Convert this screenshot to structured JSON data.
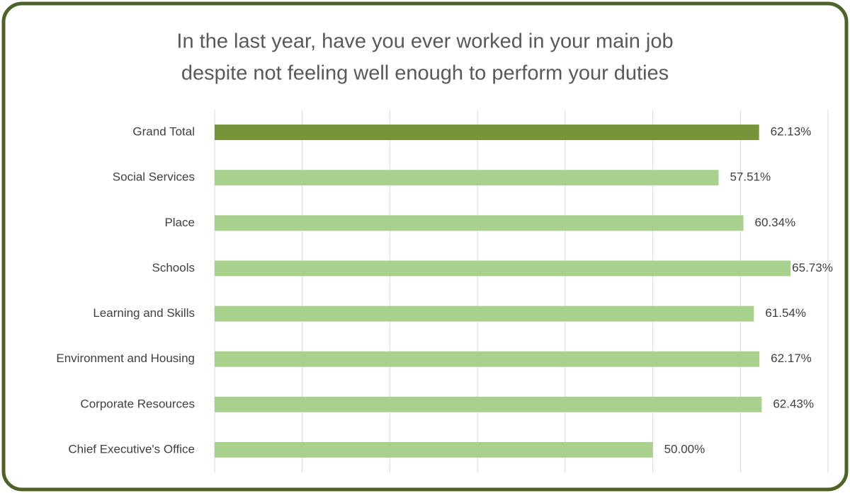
{
  "chart_data": {
    "type": "bar",
    "orientation": "horizontal",
    "title": [
      "In the last year, have you ever worked in your main job",
      "despite not feeling well enough to perform your duties"
    ],
    "categories": [
      "Grand Total",
      "Social Services",
      "Place",
      "Schools",
      "Learning and Skills",
      "Environment and Housing",
      "Corporate Resources",
      "Chief Executive's Office"
    ],
    "values": [
      62.13,
      57.51,
      60.34,
      65.73,
      61.54,
      62.17,
      62.43,
      50.0
    ],
    "value_labels": [
      "62.13%",
      "57.51%",
      "60.34%",
      "65.73%",
      "61.54%",
      "62.17%",
      "62.43%",
      "50.00%"
    ],
    "colors": [
      "#77933c",
      "#a9d18e",
      "#a9d18e",
      "#a9d18e",
      "#a9d18e",
      "#a9d18e",
      "#a9d18e",
      "#a9d18e"
    ],
    "xlim": [
      0,
      70
    ],
    "xticks": [
      0,
      10,
      20,
      30,
      40,
      50,
      60,
      70
    ],
    "grid": true
  }
}
